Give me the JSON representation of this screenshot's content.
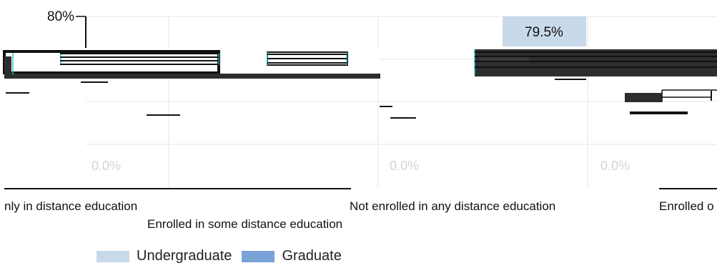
{
  "chart_data": {
    "type": "bar",
    "categories": [
      "Enrolled exclusively in distance education",
      "Enrolled in some distance education",
      "Not enrolled in any distance education",
      "Enrolled only at an institution"
    ],
    "series": [
      {
        "name": "Undergraduate",
        "values": [
          null,
          null,
          79.5,
          null
        ]
      },
      {
        "name": "Graduate",
        "values": [
          null,
          null,
          null,
          null
        ]
      }
    ],
    "ylim": [
      0,
      100
    ],
    "axis_label_top": "80%",
    "value_label": "79.5%",
    "faint_labels": [
      "0.0%",
      "0.0%",
      "0.0%"
    ],
    "visible_category_labels": [
      "nly in distance education",
      "Enrolled in some distance education",
      "Not enrolled in any distance education",
      "Enrolled o"
    ],
    "colors": {
      "undergraduate": "#c8d9ea",
      "graduate": "#79a2d6",
      "dark_bar": "#2d2d2d",
      "grid": "#e6e6e6"
    }
  }
}
